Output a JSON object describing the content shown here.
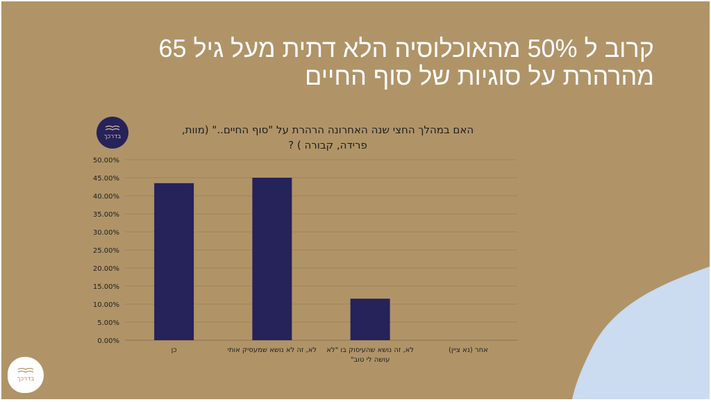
{
  "slide": {
    "headline_line1": "קרוב ל 50% מהאוכלוסיה הלא דתית מעל גיל 65",
    "headline_line2": "מהרהרת על סוגיות של סוף החיים",
    "logo_text": "בדרכך",
    "colors": {
      "background": "#b09468",
      "accent_blob": "#cbdbf0",
      "bar": "#26225a"
    }
  },
  "chart_data": {
    "type": "bar",
    "title": "האם במהלך החצי שנה האחרונה הרהרת על \"סוף החיים..\" (מוות, פרידה, קבורה ) ?",
    "categories": [
      [
        "כן"
      ],
      [
        "לא, זה לא נושא שמעסיק אותי"
      ],
      [
        "לא, זה נושא שהעיסוק בו \"לא",
        "עושה לי טוב\""
      ],
      [
        "אחר (נא ציין)"
      ]
    ],
    "values": [
      43.5,
      45.0,
      11.5,
      0.0
    ],
    "ylim": [
      0,
      50
    ],
    "yticks": [
      "0.00%",
      "5.00%",
      "10.00%",
      "15.00%",
      "20.00%",
      "25.00%",
      "30.00%",
      "35.00%",
      "40.00%",
      "45.00%",
      "50.00%"
    ],
    "grid": true,
    "legend": "none",
    "xlabel": "",
    "ylabel": ""
  }
}
